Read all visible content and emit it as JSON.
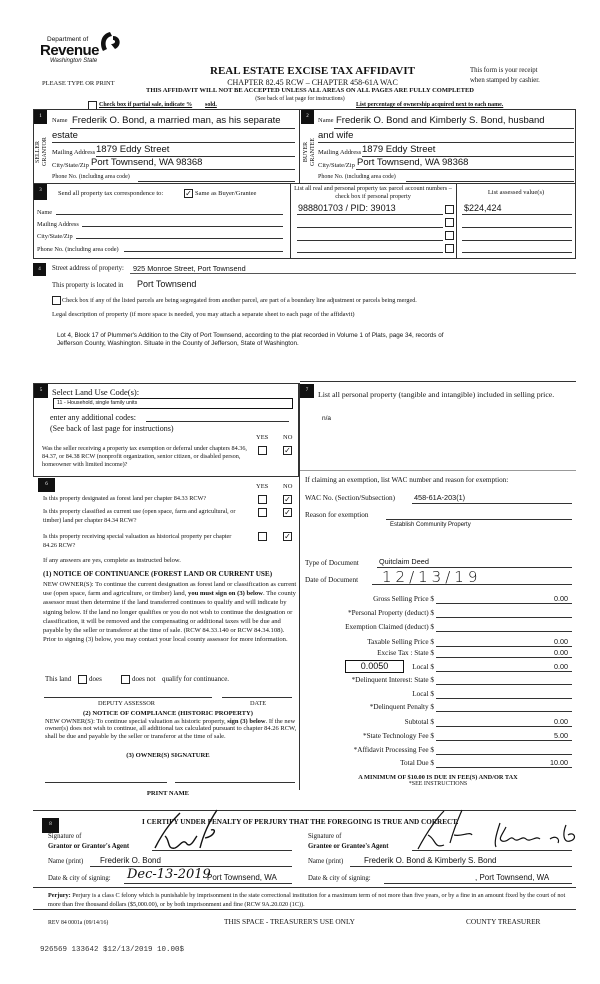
{
  "header": {
    "logo_dept": "Department of",
    "logo_revenue": "Revenue",
    "logo_state": "Washington State",
    "title": "REAL ESTATE EXCISE TAX AFFIDAVIT",
    "chapter": "CHAPTER 82.45 RCW – CHAPTER 458-61A WAC",
    "please": "PLEASE TYPE OR PRINT",
    "receipt1": "This form is your receipt",
    "receipt2": "when stamped by cashier.",
    "warning": "THIS AFFIDAVIT WILL NOT BE ACCEPTED UNLESS ALL AREAS ON ALL PAGES ARE FULLY COMPLETED",
    "see_back": "(See back of last page for instructions)",
    "partial": "Check box if partial sale, indicate %",
    "sold": "sold.",
    "percentage": "List percentage of ownership acquired next to each name."
  },
  "seller": {
    "num": "1",
    "side": "SELLER GRANTOR",
    "name_label": "Name",
    "name1": "Frederik O. Bond, a married man, as his separate",
    "name2": "estate",
    "mail_label": "Mailing Address",
    "mail": "1879 Eddy Street",
    "city_label": "City/State/Zip",
    "city": "Port Townsend, WA  98368",
    "phone_label": "Phone No. (including area code)"
  },
  "buyer": {
    "num": "2",
    "side": "BUYER GRANTEE",
    "name_label": "Name",
    "name1": "Frederik O. Bond and Kimberly S. Bond, husband",
    "name2": "and wife",
    "mail_label": "Mailing Address",
    "mail": "1879 Eddy Street",
    "city_label": "City/State/Zip",
    "city": "Port Townsend, WA  98368",
    "phone_label": "Phone No. (including area code)"
  },
  "section3": {
    "num": "3",
    "send_label": "Send all property tax correspondence to:",
    "same_label": "Same as Buyer/Grantee",
    "same_checked": true,
    "name_label": "Name",
    "mail_label": "Mailing Address",
    "city_label": "City/State/Zip",
    "phone_label": "Phone No. (including area code)",
    "parcel_header": "List all real and personal property tax parcel account numbers – check box if personal property",
    "assessed_header": "List assessed value(s)",
    "parcel": "988801703 / PID: 39013",
    "assessed": "$224,424"
  },
  "section4": {
    "num": "4",
    "street_label": "Street address of property:",
    "street": "925 Monroe Street, Port Townsend",
    "located_label": "This property is located in",
    "located": "Port Townsend",
    "segregate": "Check box if any of the listed parcels are being segregated from another parcel, are part of a boundary line adjustment or parcels being merged.",
    "legal_label": "Legal description of property (if more space is needed, you may attach a separate sheet to each page of the affidavit)",
    "legal": "Lot 4, Block 17 of Plummer's Addition to the City of Port Townsend, according to the plat recorded in Volume 1 of Plats, page 34, records of Jefferson County, Washington. Situate in the County of Jefferson, State of Washington."
  },
  "section5": {
    "num": "5",
    "label": "Select Land Use Code(s):",
    "code": "11 - Household, single family units",
    "additional": "enter any additional codes:",
    "see_back": "(See back of last page for instructions)",
    "yes": "YES",
    "no": "NO",
    "question": "Was the seller receiving a property tax exemption or deferral under chapters 84.36, 84.37, or 84.38 RCW (nonprofit organization, senior citizen, or disabled person, homeowner with limited income)?",
    "answer": "NO"
  },
  "section6": {
    "num": "6",
    "yes": "YES",
    "no": "NO",
    "questions": [
      {
        "text": "Is this property designated as forest land per chapter 84.33 RCW?",
        "answer": "NO"
      },
      {
        "text": "Is this property classified as current use (open space, farm and agricultural, or timber) land per chapter 84.34 RCW?",
        "answer": "NO"
      },
      {
        "text": "Is this property receiving special valuation as historical property per chapter 84.26 RCW?",
        "answer": "NO"
      }
    ],
    "if_yes": "If any answers are yes, complete as instructed below.",
    "notice1_title": "(1) NOTICE OF CONTINUANCE  (FOREST LAND OR CURRENT USE)",
    "notice1_a": "NEW OWNER(S): To continue the current designation as forest land or classification as current use (open space, farm and agriculture, or timber) land, ",
    "notice1_bold": "you must sign on (3) below",
    "notice1_b": ". The county assessor must then determine if the land transferred continues to qualify and will indicate by signing below. If the land no longer qualifies or you do not wish to continue the designation or classification, it will be removed and the compensating or additional taxes will be due and payable by the seller or transferor at the time of sale. (RCW 84.33.140 or RCW 84.34.108). Prior to signing (3) below, you may contact your local county assessor for more information.",
    "this_land": "This land",
    "does": "does",
    "does_not": "does not",
    "qualify": "qualify for continuance.",
    "deputy": "DEPUTY ASSESSOR",
    "date": "DATE",
    "notice2_title": "(2) NOTICE OF COMPLIANCE (HISTORIC PROPERTY)",
    "notice2_a": "NEW OWNER(S): To continue special valuation as historic property, ",
    "notice2_bold": "sign (3) below",
    "notice2_b": ". If the new owner(s) does not wish to continue, all additional tax calculated pursuant to chapter 84.26 RCW, shall be due and payable by the seller or transferor at the time of sale.",
    "owner_sig": "(3)  OWNER(S) SIGNATURE",
    "print_name": "PRINT NAME"
  },
  "section7": {
    "num": "7",
    "label": "List all  personal property (tangible and intangible) included in selling price.",
    "value": "n/a"
  },
  "exemption": {
    "heading": "If claiming an exemption, list WAC number and reason for exemption:",
    "wac_label": "WAC No. (Section/Subsection)",
    "wac": "458-61A-203(1)",
    "reason_label": "Reason for exemption",
    "reason": "Establish Community Property",
    "doc_type_label": "Type of Document",
    "doc_type": "Quitclaim Deed",
    "doc_date_label": "Date of Document",
    "doc_date": "12/13/19"
  },
  "fees": {
    "rate": "0.0050",
    "rows": [
      {
        "label": "Gross Selling Price $",
        "value": "0.00"
      },
      {
        "label": "*Personal Property (deduct) $",
        "value": ""
      },
      {
        "label": "Exemption Claimed (deduct) $",
        "value": ""
      },
      {
        "label": "Taxable Selling Price $",
        "value": "0.00"
      },
      {
        "label": "Excise Tax : State $",
        "value": "0.00"
      },
      {
        "label": "Local $",
        "value": "0.00"
      },
      {
        "label": "*Delinquent Interest: State $",
        "value": ""
      },
      {
        "label": "Local $",
        "value": ""
      },
      {
        "label": "*Delinquent Penalty $",
        "value": ""
      },
      {
        "label": "Subtotal $",
        "value": "0.00"
      },
      {
        "label": "*State Technology Fee $",
        "value": "5.00"
      },
      {
        "label": "*Affidavit Processing Fee $",
        "value": ""
      },
      {
        "label": "Total Due $",
        "value": "10.00"
      }
    ],
    "minimum": "A MINIMUM OF $10.00 IS DUE IN FEE(S) AND/OR TAX",
    "see_instructions": "*SEE INSTRUCTIONS"
  },
  "section8": {
    "num": "8",
    "certify": "I CERTIFY UNDER PENALTY OF PERJURY THAT THE FOREGOING IS TRUE AND CORRECT.",
    "grantor_sig1": "Signature of",
    "grantor_sig2": "Grantor or Grantor's Agent",
    "grantee_sig1": "Signature of",
    "grantee_sig2": "Grantee or Grantee's Agent",
    "name_label": "Name (print)",
    "grantor_name": "Frederik O. Bond",
    "grantee_name": "Frederik O. Bond & Kimberly S. Bond",
    "date_label": "Date & city of signing:",
    "grantor_date": "Dec-13-2019",
    "grantor_city": "Port Townsend, WA",
    "grantee_city": ", Port Townsend, WA"
  },
  "footer": {
    "perjury_bold": "Perjury:",
    "perjury": " Perjury is a class C felony which is punishable by imprisonment in the state correctional institution for a maximum term of not more than five years, or by a fine in an amount fixed by the court of not more than five thousand dollars ($5,000.00), or by both imprisonment and fine (RCW 9A.20.020 (1C)).",
    "rev": "REV 84 0001a (09/14/16)",
    "treasurer_space": "THIS SPACE - TREASURER'S USE ONLY",
    "county_treasurer": "COUNTY TREASURER",
    "receipt_stamp": "926569 133642 $12/13/2019 10.00$"
  }
}
